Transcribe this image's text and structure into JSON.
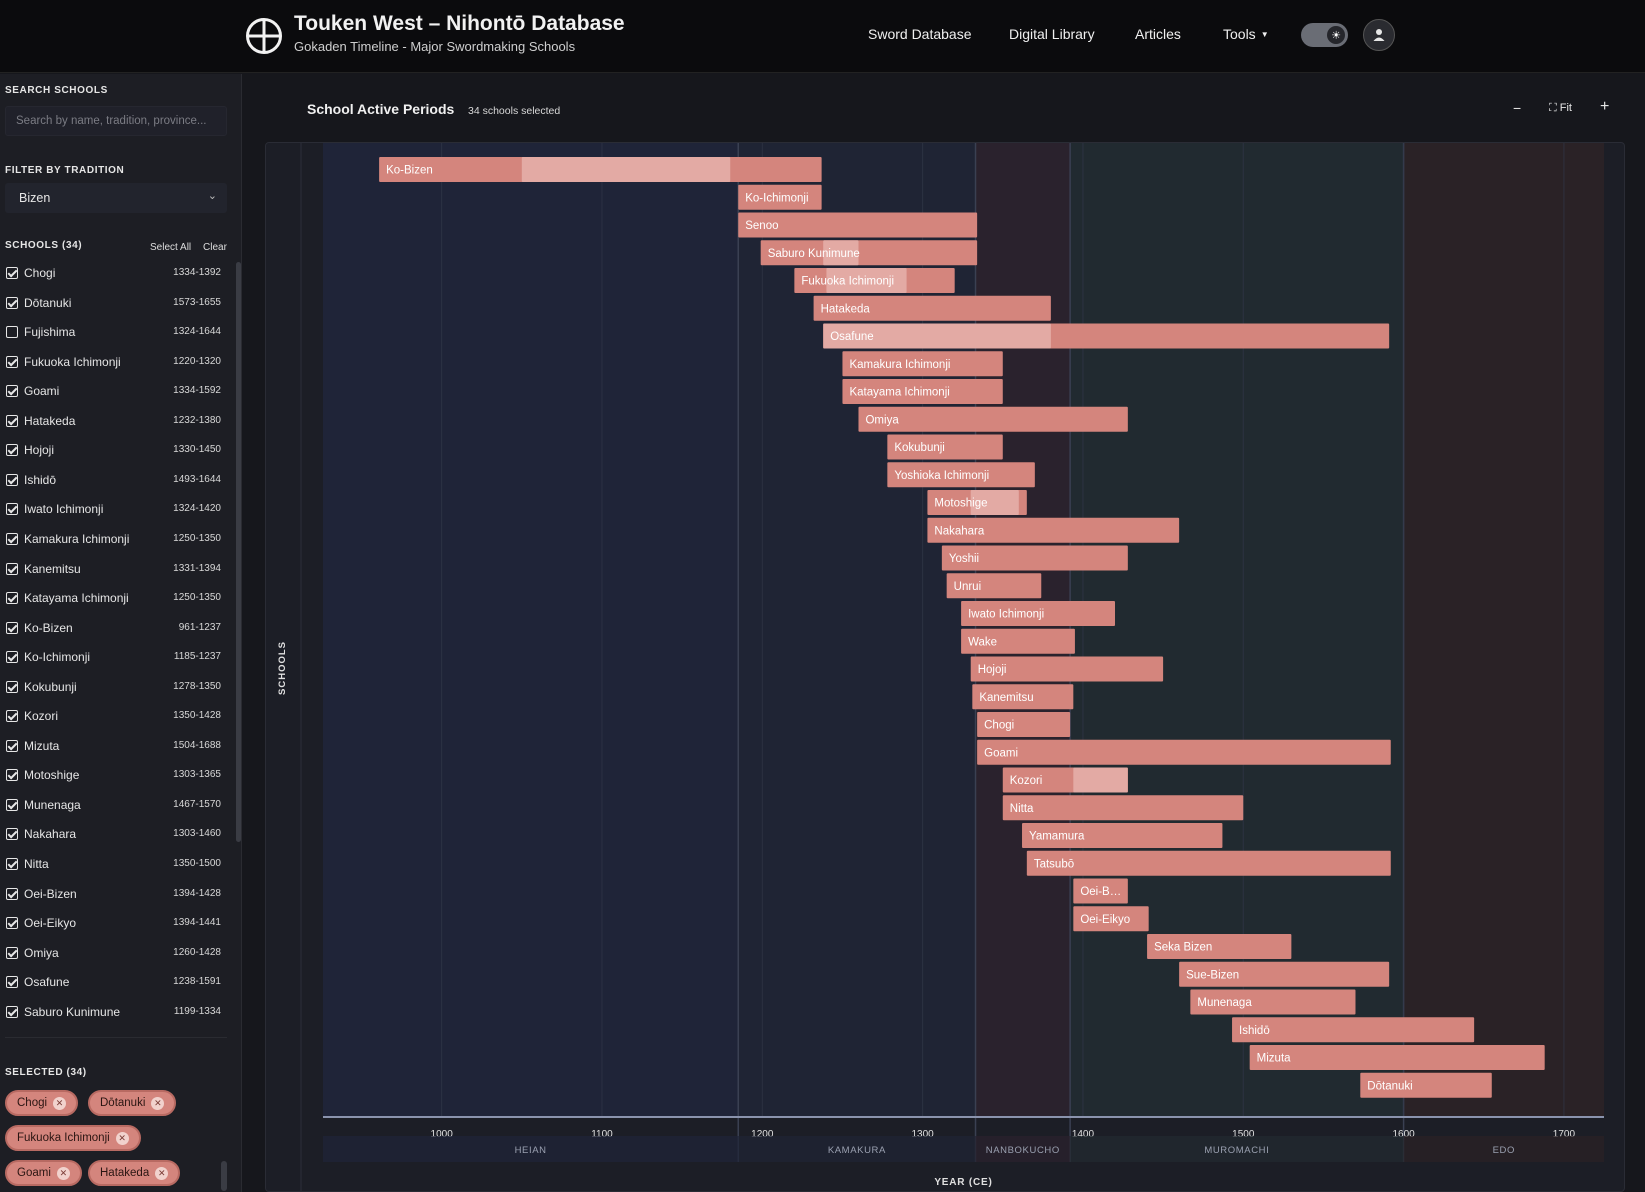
{
  "header": {
    "title": "Touken West – Nihontō Database",
    "subtitle": "Gokaden Timeline - Major Swordmaking Schools",
    "nav": [
      "Sword Database",
      "Digital Library",
      "Articles",
      "Tools"
    ]
  },
  "sidebar": {
    "search_label": "SEARCH SCHOOLS",
    "search_placeholder": "Search by name, tradition, province...",
    "filter_label": "FILTER BY TRADITION",
    "filter_value": "Bizen",
    "schools_label": "SCHOOLS (34)",
    "select_all": "Select All",
    "clear": "Clear",
    "schools": [
      {
        "name": "Chogi",
        "range": "1334-1392",
        "checked": true
      },
      {
        "name": "Dōtanuki",
        "range": "1573-1655",
        "checked": true
      },
      {
        "name": "Fujishima",
        "range": "1324-1644",
        "checked": false
      },
      {
        "name": "Fukuoka Ichimonji",
        "range": "1220-1320",
        "checked": true
      },
      {
        "name": "Goami",
        "range": "1334-1592",
        "checked": true
      },
      {
        "name": "Hatakeda",
        "range": "1232-1380",
        "checked": true
      },
      {
        "name": "Hojoji",
        "range": "1330-1450",
        "checked": true
      },
      {
        "name": "Ishidō",
        "range": "1493-1644",
        "checked": true
      },
      {
        "name": "Iwato Ichimonji",
        "range": "1324-1420",
        "checked": true
      },
      {
        "name": "Kamakura Ichimonji",
        "range": "1250-1350",
        "checked": true
      },
      {
        "name": "Kanemitsu",
        "range": "1331-1394",
        "checked": true
      },
      {
        "name": "Katayama Ichimonji",
        "range": "1250-1350",
        "checked": true
      },
      {
        "name": "Ko-Bizen",
        "range": "961-1237",
        "checked": true
      },
      {
        "name": "Ko-Ichimonji",
        "range": "1185-1237",
        "checked": true
      },
      {
        "name": "Kokubunji",
        "range": "1278-1350",
        "checked": true
      },
      {
        "name": "Kozori",
        "range": "1350-1428",
        "checked": true
      },
      {
        "name": "Mizuta",
        "range": "1504-1688",
        "checked": true
      },
      {
        "name": "Motoshige",
        "range": "1303-1365",
        "checked": true
      },
      {
        "name": "Munenaga",
        "range": "1467-1570",
        "checked": true
      },
      {
        "name": "Nakahara",
        "range": "1303-1460",
        "checked": true
      },
      {
        "name": "Nitta",
        "range": "1350-1500",
        "checked": true
      },
      {
        "name": "Oei-Bizen",
        "range": "1394-1428",
        "checked": true
      },
      {
        "name": "Oei-Eikyo",
        "range": "1394-1441",
        "checked": true
      },
      {
        "name": "Omiya",
        "range": "1260-1428",
        "checked": true
      },
      {
        "name": "Osafune",
        "range": "1238-1591",
        "checked": true
      },
      {
        "name": "Saburo Kunimune",
        "range": "1199-1334",
        "checked": true
      }
    ],
    "selected_label": "SELECTED (34)",
    "selected_chips": [
      "Chogi",
      "Dōtanuki",
      "Fukuoka Ichimonji",
      "Goami",
      "Hatakeda"
    ]
  },
  "main": {
    "title": "School Active Periods",
    "count": "34 schools selected",
    "fit_label": "Fit",
    "zoom_out": "−",
    "zoom_in": "+",
    "fit_icon": "⛶"
  },
  "chart_data": {
    "type": "gantt",
    "xlabel": "YEAR (CE)",
    "ylabel": "SCHOOLS",
    "xlim": [
      926,
      1725
    ],
    "xticks": [
      1000,
      1100,
      1200,
      1300,
      1400,
      1500,
      1600,
      1700
    ],
    "bar_color": "#d4857d",
    "highlight_color": "#e3aaa4",
    "periods": [
      {
        "name": "HEIAN",
        "start": 926,
        "end": 1185,
        "color": "#1f2438"
      },
      {
        "name": "KAMAKURA",
        "start": 1185,
        "end": 1333,
        "color": "#1f2434"
      },
      {
        "name": "NANBOKUCHO",
        "start": 1333,
        "end": 1392,
        "color": "#2a222d"
      },
      {
        "name": "MUROMACHI",
        "start": 1392,
        "end": 1600,
        "color": "#212a30"
      },
      {
        "name": "EDO",
        "start": 1600,
        "end": 1725,
        "color": "#2a2226"
      }
    ],
    "schools": [
      {
        "name": "Ko-Bizen",
        "start": 961,
        "end": 1237,
        "peak": [
          1050,
          1180
        ]
      },
      {
        "name": "Ko-Ichimonji",
        "start": 1185,
        "end": 1237
      },
      {
        "name": "Senoo",
        "start": 1185,
        "end": 1334
      },
      {
        "name": "Saburo Kunimune",
        "start": 1199,
        "end": 1334,
        "peak": [
          1238,
          1260
        ]
      },
      {
        "name": "Fukuoka Ichimonji",
        "start": 1220,
        "end": 1320,
        "peak": [
          1240,
          1290
        ]
      },
      {
        "name": "Hatakeda",
        "start": 1232,
        "end": 1380
      },
      {
        "name": "Osafune",
        "start": 1238,
        "end": 1591,
        "peak": [
          1238,
          1380
        ]
      },
      {
        "name": "Kamakura Ichimonji",
        "start": 1250,
        "end": 1350
      },
      {
        "name": "Katayama Ichimonji",
        "start": 1250,
        "end": 1350
      },
      {
        "name": "Omiya",
        "start": 1260,
        "end": 1428
      },
      {
        "name": "Kokubunji",
        "start": 1278,
        "end": 1350
      },
      {
        "name": "Yoshioka Ichimonji",
        "start": 1278,
        "end": 1370
      },
      {
        "name": "Motoshige",
        "start": 1303,
        "end": 1365,
        "peak": [
          1330,
          1360
        ]
      },
      {
        "name": "Nakahara",
        "start": 1303,
        "end": 1460
      },
      {
        "name": "Yoshii",
        "start": 1312,
        "end": 1428
      },
      {
        "name": "Unrui",
        "start": 1315,
        "end": 1374
      },
      {
        "name": "Iwato Ichimonji",
        "start": 1324,
        "end": 1420
      },
      {
        "name": "Wake",
        "start": 1324,
        "end": 1395
      },
      {
        "name": "Hojoji",
        "start": 1330,
        "end": 1450
      },
      {
        "name": "Kanemitsu",
        "start": 1331,
        "end": 1394
      },
      {
        "name": "Chogi",
        "start": 1334,
        "end": 1392
      },
      {
        "name": "Goami",
        "start": 1334,
        "end": 1592
      },
      {
        "name": "Kozori",
        "start": 1350,
        "end": 1428,
        "peak": [
          1394,
          1428
        ]
      },
      {
        "name": "Nitta",
        "start": 1350,
        "end": 1500
      },
      {
        "name": "Yamamura",
        "start": 1362,
        "end": 1487
      },
      {
        "name": "Tatsubō",
        "start": 1365,
        "end": 1592
      },
      {
        "name": "Oei-Bizen",
        "start": 1394,
        "end": 1428,
        "label": "Oei-B…"
      },
      {
        "name": "Oei-Eikyo",
        "start": 1394,
        "end": 1441
      },
      {
        "name": "Seka Bizen",
        "start": 1440,
        "end": 1530
      },
      {
        "name": "Sue-Bizen",
        "start": 1460,
        "end": 1591
      },
      {
        "name": "Munenaga",
        "start": 1467,
        "end": 1570
      },
      {
        "name": "Ishidō",
        "start": 1493,
        "end": 1644
      },
      {
        "name": "Mizuta",
        "start": 1504,
        "end": 1688
      },
      {
        "name": "Dōtanuki",
        "start": 1573,
        "end": 1655
      }
    ]
  }
}
